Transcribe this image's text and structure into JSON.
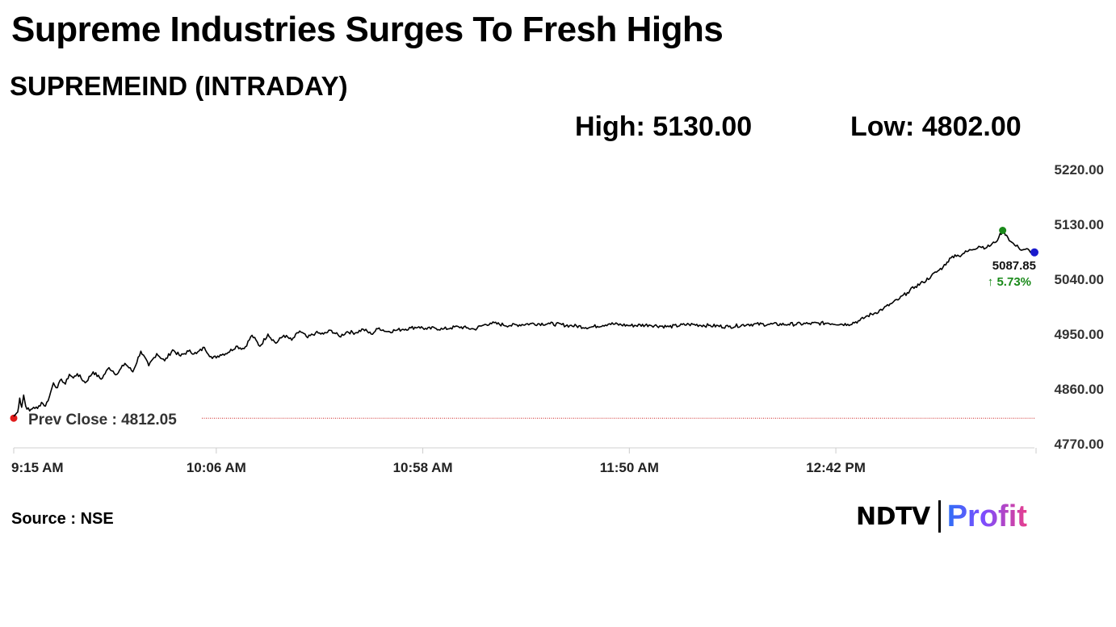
{
  "header": {
    "title": "Supreme Industries Surges To Fresh Highs",
    "subtitle": "SUPREMEIND (INTRADAY)",
    "high_label": "High: 5130.00",
    "low_label": "Low: 4802.00"
  },
  "footer": {
    "source": "Source : NSE",
    "logo_ndtv": "NDTV",
    "logo_profit": "Profit"
  },
  "colors": {
    "line": "#000000",
    "prev_close": "#cc2222",
    "high_marker": "#1a8a1a",
    "last_marker": "#1a1acc",
    "change_positive": "#1a8a1a",
    "gridline": "#dddddd"
  },
  "chart_data": {
    "type": "line",
    "title": "SUPREMEIND (INTRADAY)",
    "xlabel": "",
    "ylabel": "",
    "y_ticks": [
      "5220.00",
      "5130.00",
      "5040.00",
      "4950.00",
      "4860.00",
      "4770.00"
    ],
    "ylim": [
      4770,
      5220
    ],
    "x_ticks": [
      "9:15 AM",
      "10:06 AM",
      "10:58 AM",
      "11:50 AM",
      "12:42 PM"
    ],
    "x_tick_minutes": [
      555,
      606,
      658,
      710,
      762
    ],
    "xlim": [
      555,
      812
    ],
    "prev_close": 4812.05,
    "prev_close_label": "Prev Close : 4812.05",
    "last_price_label": "5087.85",
    "change_label": "↑ 5.73%",
    "high_point": {
      "minute": 804,
      "value": 5120
    },
    "last_point": {
      "minute": 812,
      "value": 5084
    },
    "series": [
      {
        "x_minutes": [
          555,
          556,
          556.5,
          557,
          557.5,
          558,
          559,
          560,
          561,
          562,
          563,
          564,
          565,
          566,
          567,
          568,
          569,
          570,
          571,
          573,
          575,
          577,
          579,
          581,
          583,
          585,
          587,
          589,
          591,
          593,
          595,
          597,
          599,
          601,
          603,
          605,
          607,
          609,
          611,
          613,
          615,
          617,
          619,
          621,
          623,
          625,
          627,
          629,
          631,
          633,
          635,
          637,
          639,
          641,
          643,
          645,
          647,
          649,
          651,
          653,
          655,
          657,
          659,
          661,
          663,
          665,
          667,
          669,
          671,
          673,
          675,
          680,
          685,
          690,
          695,
          700,
          705,
          710,
          715,
          720,
          725,
          730,
          735,
          740,
          745,
          750,
          755,
          760,
          765,
          768,
          770,
          772,
          774,
          776,
          778,
          780,
          782,
          784,
          786,
          788,
          789,
          790,
          791,
          792,
          793,
          794,
          796,
          798,
          800,
          802,
          803,
          804,
          805,
          806,
          807,
          808,
          809,
          810,
          811,
          812
        ],
        "values": [
          4815,
          4822,
          4845,
          4830,
          4850,
          4832,
          4824,
          4830,
          4828,
          4838,
          4832,
          4848,
          4870,
          4862,
          4876,
          4868,
          4884,
          4878,
          4885,
          4870,
          4888,
          4876,
          4895,
          4884,
          4902,
          4888,
          4922,
          4898,
          4918,
          4906,
          4924,
          4914,
          4922,
          4918,
          4928,
          4910,
          4916,
          4920,
          4930,
          4926,
          4948,
          4930,
          4950,
          4935,
          4948,
          4940,
          4955,
          4944,
          4952,
          4950,
          4956,
          4946,
          4954,
          4952,
          4958,
          4950,
          4960,
          4954,
          4956,
          4958,
          4960,
          4962,
          4958,
          4960,
          4958,
          4960,
          4962,
          4960,
          4958,
          4964,
          4968,
          4964,
          4967,
          4967,
          4964,
          4961,
          4967,
          4964,
          4965,
          4962,
          4966,
          4964,
          4962,
          4966,
          4966,
          4966,
          4967,
          4968,
          4966,
          4972,
          4980,
          4985,
          4992,
          5000,
          5008,
          5018,
          5028,
          5035,
          5045,
          5055,
          5060,
          5068,
          5075,
          5080,
          5078,
          5082,
          5088,
          5094,
          5092,
          5100,
          5108,
          5120,
          5112,
          5102,
          5096,
          5092,
          5088,
          5090,
          5084,
          5084
        ]
      }
    ]
  }
}
